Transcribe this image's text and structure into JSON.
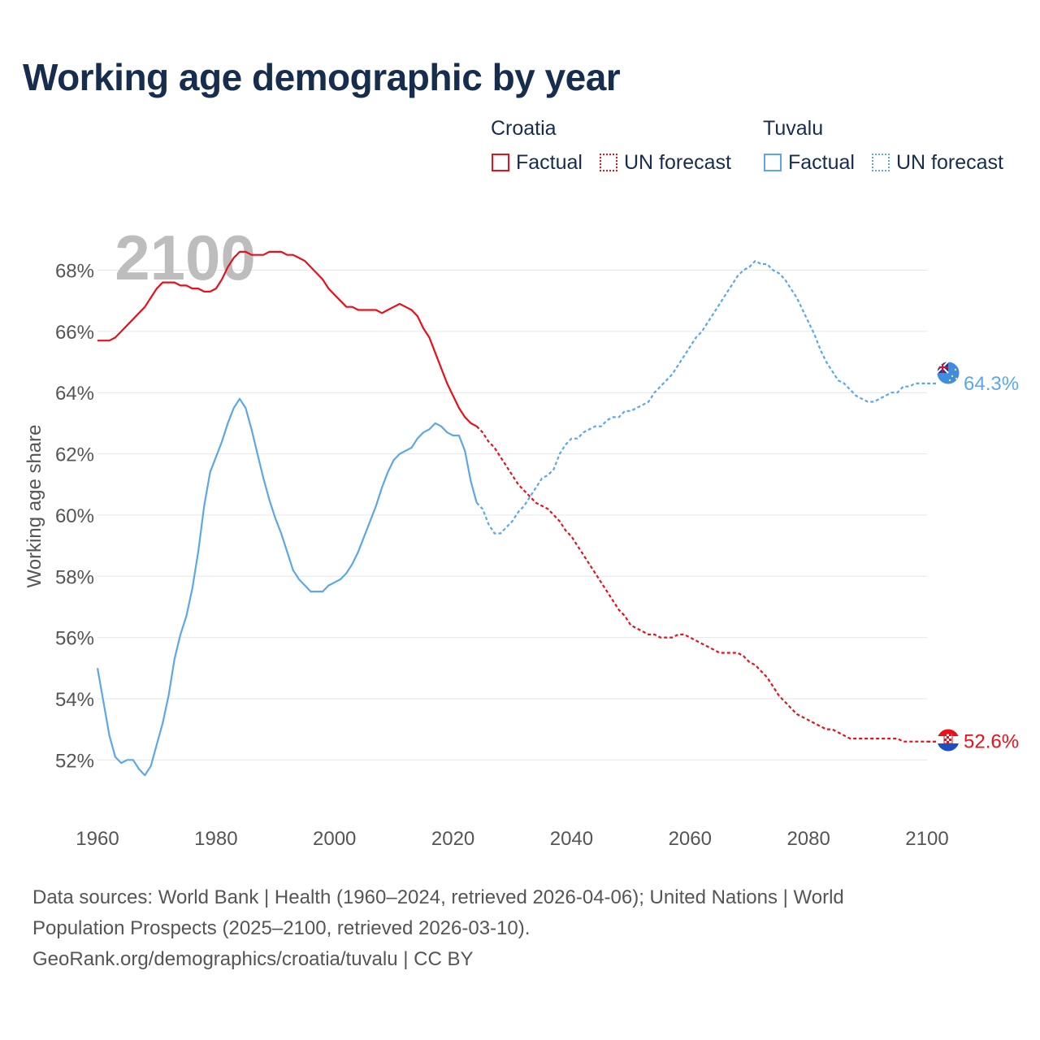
{
  "title": "Working age demographic by year",
  "legend": {
    "groups": [
      {
        "country": "Croatia",
        "factual_label": "Factual",
        "forecast_label": "UN forecast",
        "color": "#e8101a"
      },
      {
        "country": "Tuvalu",
        "factual_label": "Factual",
        "forecast_label": "UN forecast",
        "color": "#5ba8e8"
      }
    ]
  },
  "source": {
    "line1": "Data sources: World Bank | Health (1960–2024, retrieved 2026-04-06); United Nations | World",
    "line2": "Population Prospects (2025–2100, retrieved 2026-03-10).",
    "line3": "GeoRank.org/demographics/croatia/tuvalu | CC BY"
  },
  "chart_data": {
    "type": "line",
    "title": "Working age demographic by year",
    "year_label": "2100",
    "xlabel": "",
    "ylabel": "Working age share",
    "xlim": [
      1960,
      2100
    ],
    "ylim": [
      51,
      69.5
    ],
    "x_ticks": [
      1960,
      1980,
      2000,
      2020,
      2040,
      2060,
      2080,
      2100
    ],
    "y_ticks": [
      52,
      54,
      56,
      58,
      60,
      62,
      64,
      66,
      68
    ],
    "y_tick_suffix": "%",
    "grid": true,
    "series": [
      {
        "name": "Croatia",
        "color": "#e8101a",
        "end_label": "52.6%",
        "factual": [
          [
            1960,
            65.7
          ],
          [
            1962,
            65.7
          ],
          [
            1963,
            65.8
          ],
          [
            1964,
            66.0
          ],
          [
            1966,
            66.4
          ],
          [
            1968,
            66.8
          ],
          [
            1969,
            67.1
          ],
          [
            1970,
            67.4
          ],
          [
            1971,
            67.6
          ],
          [
            1972,
            67.6
          ],
          [
            1973,
            67.6
          ],
          [
            1974,
            67.5
          ],
          [
            1975,
            67.5
          ],
          [
            1976,
            67.4
          ],
          [
            1977,
            67.4
          ],
          [
            1978,
            67.3
          ],
          [
            1979,
            67.3
          ],
          [
            1980,
            67.4
          ],
          [
            1981,
            67.7
          ],
          [
            1982,
            68.1
          ],
          [
            1983,
            68.4
          ],
          [
            1984,
            68.6
          ],
          [
            1985,
            68.6
          ],
          [
            1986,
            68.5
          ],
          [
            1988,
            68.5
          ],
          [
            1989,
            68.6
          ],
          [
            1991,
            68.6
          ],
          [
            1992,
            68.5
          ],
          [
            1993,
            68.5
          ],
          [
            1994,
            68.4
          ],
          [
            1995,
            68.3
          ],
          [
            1996,
            68.1
          ],
          [
            1997,
            67.9
          ],
          [
            1998,
            67.7
          ],
          [
            1999,
            67.4
          ],
          [
            2000,
            67.2
          ],
          [
            2001,
            67.0
          ],
          [
            2002,
            66.8
          ],
          [
            2003,
            66.8
          ],
          [
            2004,
            66.7
          ],
          [
            2007,
            66.7
          ],
          [
            2008,
            66.6
          ],
          [
            2009,
            66.7
          ],
          [
            2010,
            66.8
          ],
          [
            2011,
            66.9
          ],
          [
            2012,
            66.8
          ],
          [
            2013,
            66.7
          ],
          [
            2014,
            66.5
          ],
          [
            2015,
            66.1
          ],
          [
            2016,
            65.8
          ],
          [
            2017,
            65.3
          ],
          [
            2018,
            64.8
          ],
          [
            2019,
            64.3
          ],
          [
            2020,
            63.9
          ],
          [
            2021,
            63.5
          ],
          [
            2022,
            63.2
          ],
          [
            2023,
            63.0
          ],
          [
            2024,
            62.9
          ]
        ],
        "forecast": [
          [
            2024,
            62.9
          ],
          [
            2025,
            62.7
          ],
          [
            2026,
            62.4
          ],
          [
            2027,
            62.2
          ],
          [
            2028,
            61.9
          ],
          [
            2029,
            61.6
          ],
          [
            2030,
            61.3
          ],
          [
            2031,
            61.0
          ],
          [
            2032,
            60.8
          ],
          [
            2033,
            60.6
          ],
          [
            2034,
            60.4
          ],
          [
            2035,
            60.3
          ],
          [
            2036,
            60.2
          ],
          [
            2037,
            60.0
          ],
          [
            2038,
            59.8
          ],
          [
            2039,
            59.5
          ],
          [
            2040,
            59.3
          ],
          [
            2041,
            59.0
          ],
          [
            2042,
            58.7
          ],
          [
            2043,
            58.4
          ],
          [
            2044,
            58.1
          ],
          [
            2045,
            57.8
          ],
          [
            2046,
            57.5
          ],
          [
            2047,
            57.2
          ],
          [
            2048,
            56.9
          ],
          [
            2049,
            56.7
          ],
          [
            2050,
            56.4
          ],
          [
            2051,
            56.3
          ],
          [
            2052,
            56.2
          ],
          [
            2053,
            56.1
          ],
          [
            2054,
            56.1
          ],
          [
            2055,
            56.0
          ],
          [
            2057,
            56.0
          ],
          [
            2058,
            56.1
          ],
          [
            2059,
            56.1
          ],
          [
            2060,
            56.0
          ],
          [
            2061,
            55.9
          ],
          [
            2062,
            55.8
          ],
          [
            2063,
            55.7
          ],
          [
            2064,
            55.6
          ],
          [
            2065,
            55.5
          ],
          [
            2068,
            55.5
          ],
          [
            2069,
            55.4
          ],
          [
            2070,
            55.2
          ],
          [
            2071,
            55.1
          ],
          [
            2072,
            54.9
          ],
          [
            2073,
            54.7
          ],
          [
            2074,
            54.4
          ],
          [
            2075,
            54.1
          ],
          [
            2076,
            53.9
          ],
          [
            2077,
            53.7
          ],
          [
            2078,
            53.5
          ],
          [
            2079,
            53.4
          ],
          [
            2080,
            53.3
          ],
          [
            2081,
            53.2
          ],
          [
            2082,
            53.1
          ],
          [
            2083,
            53.0
          ],
          [
            2084,
            53.0
          ],
          [
            2085,
            52.9
          ],
          [
            2086,
            52.8
          ],
          [
            2087,
            52.7
          ],
          [
            2094,
            52.7
          ],
          [
            2095,
            52.7
          ],
          [
            2096,
            52.6
          ],
          [
            2099,
            52.6
          ],
          [
            2100,
            52.6
          ]
        ]
      },
      {
        "name": "Tuvalu",
        "color": "#5ba8e8",
        "end_label": "64.3%",
        "factual": [
          [
            1960,
            55.0
          ],
          [
            1961,
            53.9
          ],
          [
            1962,
            52.8
          ],
          [
            1963,
            52.1
          ],
          [
            1964,
            51.9
          ],
          [
            1965,
            52.0
          ],
          [
            1966,
            52.0
          ],
          [
            1967,
            51.7
          ],
          [
            1968,
            51.5
          ],
          [
            1969,
            51.8
          ],
          [
            1970,
            52.5
          ],
          [
            1971,
            53.2
          ],
          [
            1972,
            54.1
          ],
          [
            1973,
            55.3
          ],
          [
            1974,
            56.1
          ],
          [
            1975,
            56.7
          ],
          [
            1976,
            57.6
          ],
          [
            1977,
            58.8
          ],
          [
            1978,
            60.3
          ],
          [
            1979,
            61.4
          ],
          [
            1980,
            61.9
          ],
          [
            1981,
            62.4
          ],
          [
            1982,
            63.0
          ],
          [
            1983,
            63.5
          ],
          [
            1984,
            63.8
          ],
          [
            1985,
            63.5
          ],
          [
            1986,
            62.8
          ],
          [
            1987,
            62.0
          ],
          [
            1988,
            61.2
          ],
          [
            1989,
            60.5
          ],
          [
            1990,
            59.9
          ],
          [
            1991,
            59.4
          ],
          [
            1992,
            58.8
          ],
          [
            1993,
            58.2
          ],
          [
            1994,
            57.9
          ],
          [
            1995,
            57.7
          ],
          [
            1996,
            57.5
          ],
          [
            1998,
            57.5
          ],
          [
            1999,
            57.7
          ],
          [
            2000,
            57.8
          ],
          [
            2001,
            57.9
          ],
          [
            2002,
            58.1
          ],
          [
            2003,
            58.4
          ],
          [
            2004,
            58.8
          ],
          [
            2005,
            59.3
          ],
          [
            2006,
            59.8
          ],
          [
            2007,
            60.3
          ],
          [
            2008,
            60.9
          ],
          [
            2009,
            61.4
          ],
          [
            2010,
            61.8
          ],
          [
            2011,
            62.0
          ],
          [
            2012,
            62.1
          ],
          [
            2013,
            62.2
          ],
          [
            2014,
            62.5
          ],
          [
            2015,
            62.7
          ],
          [
            2016,
            62.8
          ],
          [
            2017,
            63.0
          ],
          [
            2018,
            62.9
          ],
          [
            2019,
            62.7
          ],
          [
            2020,
            62.6
          ],
          [
            2021,
            62.6
          ],
          [
            2022,
            62.1
          ],
          [
            2023,
            61.1
          ],
          [
            2024,
            60.4
          ]
        ],
        "forecast": [
          [
            2024,
            60.4
          ],
          [
            2025,
            60.2
          ],
          [
            2026,
            59.7
          ],
          [
            2027,
            59.4
          ],
          [
            2028,
            59.4
          ],
          [
            2029,
            59.6
          ],
          [
            2030,
            59.8
          ],
          [
            2031,
            60.1
          ],
          [
            2032,
            60.3
          ],
          [
            2033,
            60.6
          ],
          [
            2034,
            60.9
          ],
          [
            2035,
            61.2
          ],
          [
            2036,
            61.3
          ],
          [
            2037,
            61.5
          ],
          [
            2038,
            62.0
          ],
          [
            2039,
            62.3
          ],
          [
            2040,
            62.5
          ],
          [
            2041,
            62.5
          ],
          [
            2042,
            62.7
          ],
          [
            2043,
            62.8
          ],
          [
            2044,
            62.9
          ],
          [
            2045,
            62.9
          ],
          [
            2046,
            63.1
          ],
          [
            2047,
            63.2
          ],
          [
            2048,
            63.2
          ],
          [
            2049,
            63.4
          ],
          [
            2050,
            63.4
          ],
          [
            2051,
            63.5
          ],
          [
            2052,
            63.6
          ],
          [
            2053,
            63.7
          ],
          [
            2054,
            64.0
          ],
          [
            2055,
            64.2
          ],
          [
            2056,
            64.4
          ],
          [
            2057,
            64.6
          ],
          [
            2058,
            64.9
          ],
          [
            2059,
            65.2
          ],
          [
            2060,
            65.5
          ],
          [
            2061,
            65.8
          ],
          [
            2062,
            66.0
          ],
          [
            2063,
            66.3
          ],
          [
            2064,
            66.6
          ],
          [
            2065,
            66.9
          ],
          [
            2066,
            67.2
          ],
          [
            2067,
            67.5
          ],
          [
            2068,
            67.8
          ],
          [
            2069,
            68.0
          ],
          [
            2070,
            68.1
          ],
          [
            2071,
            68.3
          ],
          [
            2072,
            68.2
          ],
          [
            2073,
            68.2
          ],
          [
            2074,
            68.0
          ],
          [
            2075,
            67.9
          ],
          [
            2076,
            67.7
          ],
          [
            2077,
            67.4
          ],
          [
            2078,
            67.1
          ],
          [
            2079,
            66.7
          ],
          [
            2080,
            66.3
          ],
          [
            2081,
            65.9
          ],
          [
            2082,
            65.4
          ],
          [
            2083,
            65.0
          ],
          [
            2084,
            64.7
          ],
          [
            2085,
            64.4
          ],
          [
            2086,
            64.3
          ],
          [
            2087,
            64.1
          ],
          [
            2088,
            63.9
          ],
          [
            2089,
            63.8
          ],
          [
            2090,
            63.7
          ],
          [
            2091,
            63.7
          ],
          [
            2092,
            63.8
          ],
          [
            2093,
            63.9
          ],
          [
            2094,
            64.0
          ],
          [
            2095,
            64.0
          ],
          [
            2096,
            64.2
          ],
          [
            2097,
            64.2
          ],
          [
            2098,
            64.3
          ],
          [
            2100,
            64.3
          ]
        ]
      }
    ]
  }
}
